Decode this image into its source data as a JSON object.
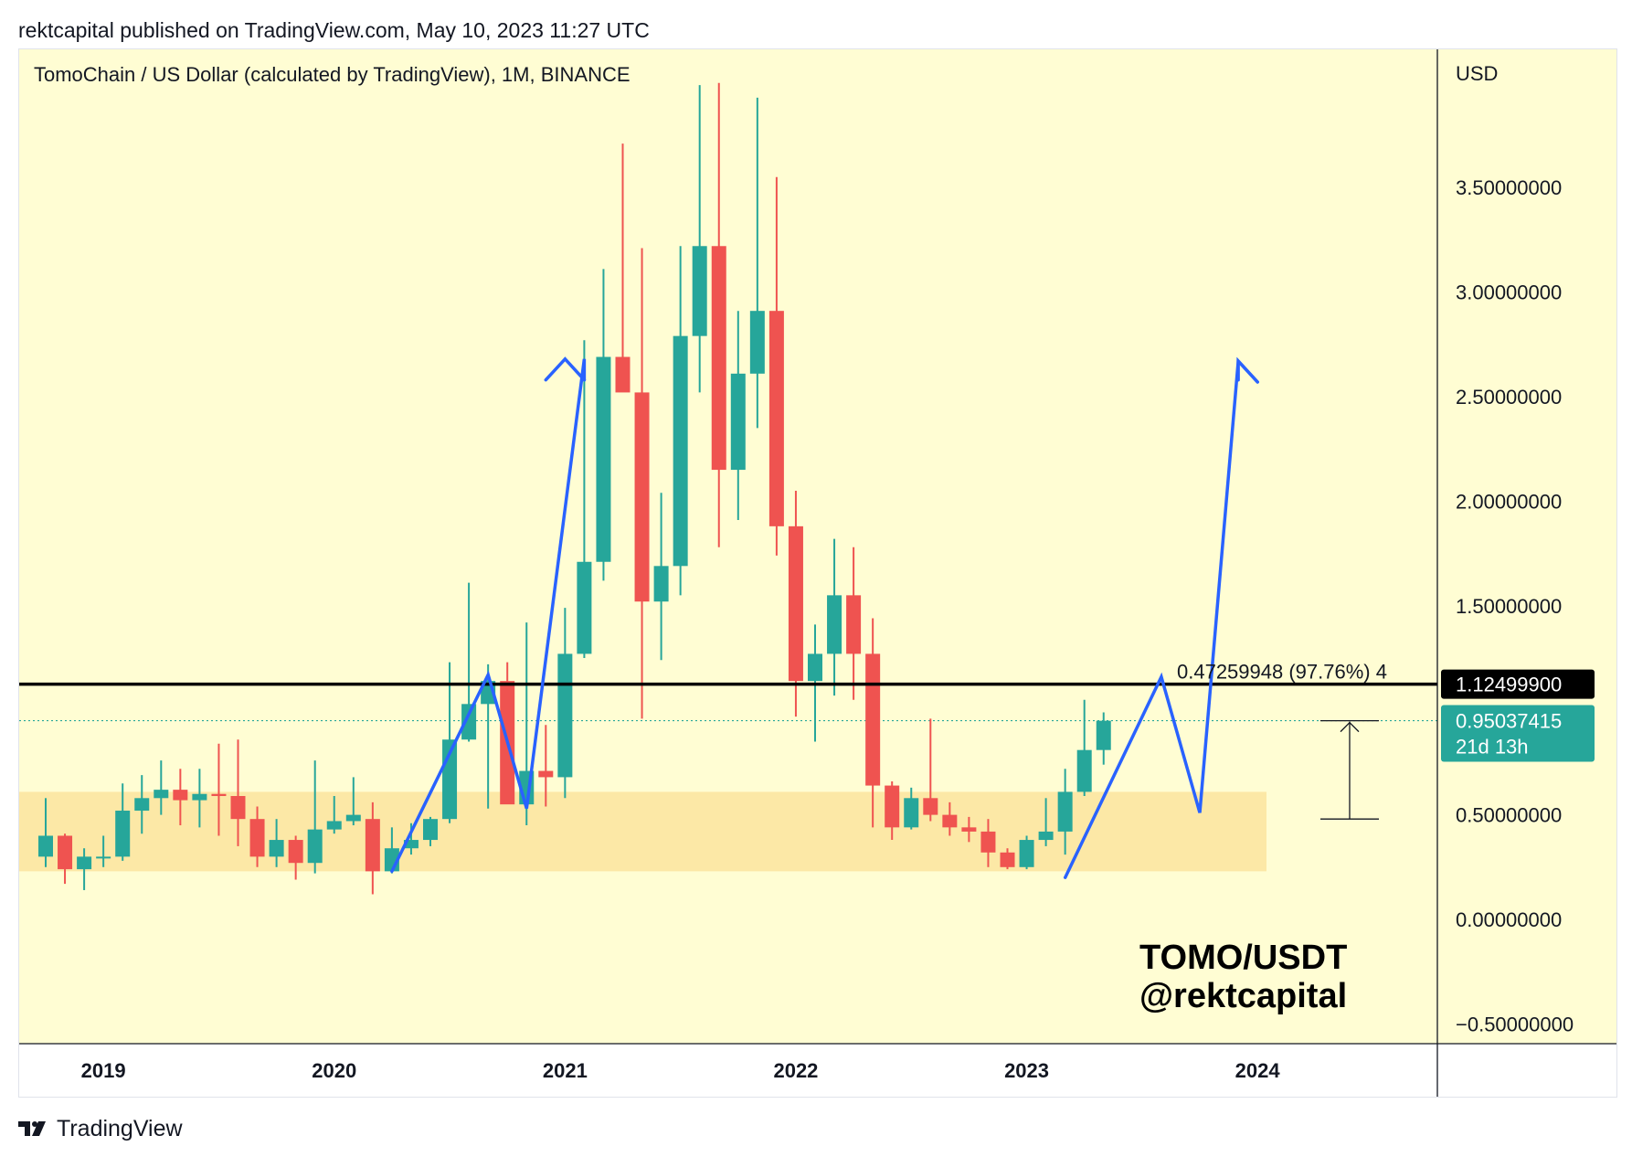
{
  "header": {
    "published_text": "rektcapital published on TradingView.com, May 10, 2023 11:27 UTC"
  },
  "footer": {
    "brand": "TradingView",
    "logo_icon": "tradingview-logo-icon"
  },
  "chart_data": {
    "type": "candlestick",
    "title": "TomoChain / US Dollar (calculated by TradingView), 1M, BINANCE",
    "currency_label": "USD",
    "watermark": [
      "TOMO/USDT",
      "@rektcapital"
    ],
    "x_tick_labels": [
      "2019",
      "2020",
      "2021",
      "2022",
      "2023",
      "2024"
    ],
    "y_tick_labels": [
      "3.50000000",
      "3.00000000",
      "2.50000000",
      "2.00000000",
      "1.50000000",
      "0.50000000",
      "0.00000000",
      "−0.50000000"
    ],
    "y_ticks": [
      3.5,
      3.0,
      2.5,
      2.0,
      1.5,
      0.5,
      0.0,
      -0.5
    ],
    "ylim": [
      -0.58,
      4.02
    ],
    "grid": false,
    "colors": {
      "background": "#fffdd3",
      "up": "#26a69a",
      "down": "#ef5350",
      "zone": "#fce8a6",
      "projection": "#2962ff",
      "resistance": "#000000"
    },
    "candles": [
      {
        "month": "2018-10",
        "open": 0.3,
        "high": 0.58,
        "low": 0.25,
        "close": 0.4
      },
      {
        "month": "2018-11",
        "open": 0.4,
        "high": 0.41,
        "low": 0.17,
        "close": 0.24
      },
      {
        "month": "2018-12",
        "open": 0.24,
        "high": 0.34,
        "low": 0.14,
        "close": 0.3
      },
      {
        "month": "2019-01",
        "open": 0.3,
        "high": 0.4,
        "low": 0.25,
        "close": 0.3
      },
      {
        "month": "2019-02",
        "open": 0.3,
        "high": 0.65,
        "low": 0.28,
        "close": 0.52
      },
      {
        "month": "2019-03",
        "open": 0.52,
        "high": 0.69,
        "low": 0.41,
        "close": 0.58
      },
      {
        "month": "2019-04",
        "open": 0.58,
        "high": 0.76,
        "low": 0.5,
        "close": 0.62
      },
      {
        "month": "2019-05",
        "open": 0.62,
        "high": 0.72,
        "low": 0.45,
        "close": 0.57
      },
      {
        "month": "2019-06",
        "open": 0.57,
        "high": 0.72,
        "low": 0.44,
        "close": 0.6
      },
      {
        "month": "2019-07",
        "open": 0.6,
        "high": 0.84,
        "low": 0.4,
        "close": 0.59
      },
      {
        "month": "2019-08",
        "open": 0.59,
        "high": 0.86,
        "low": 0.35,
        "close": 0.48
      },
      {
        "month": "2019-09",
        "open": 0.48,
        "high": 0.54,
        "low": 0.25,
        "close": 0.3
      },
      {
        "month": "2019-10",
        "open": 0.3,
        "high": 0.48,
        "low": 0.25,
        "close": 0.38
      },
      {
        "month": "2019-11",
        "open": 0.38,
        "high": 0.4,
        "low": 0.19,
        "close": 0.27
      },
      {
        "month": "2019-12",
        "open": 0.27,
        "high": 0.76,
        "low": 0.22,
        "close": 0.43
      },
      {
        "month": "2020-01",
        "open": 0.43,
        "high": 0.59,
        "low": 0.41,
        "close": 0.47
      },
      {
        "month": "2020-02",
        "open": 0.47,
        "high": 0.68,
        "low": 0.45,
        "close": 0.5
      },
      {
        "month": "2020-03",
        "open": 0.48,
        "high": 0.56,
        "low": 0.12,
        "close": 0.23
      },
      {
        "month": "2020-04",
        "open": 0.23,
        "high": 0.44,
        "low": 0.22,
        "close": 0.34
      },
      {
        "month": "2020-05",
        "open": 0.34,
        "high": 0.46,
        "low": 0.31,
        "close": 0.38
      },
      {
        "month": "2020-06",
        "open": 0.38,
        "high": 0.49,
        "low": 0.35,
        "close": 0.48
      },
      {
        "month": "2020-07",
        "open": 0.48,
        "high": 1.23,
        "low": 0.46,
        "close": 0.86
      },
      {
        "month": "2020-08",
        "open": 0.86,
        "high": 1.61,
        "low": 0.85,
        "close": 1.03
      },
      {
        "month": "2020-09",
        "open": 1.03,
        "high": 1.22,
        "low": 0.53,
        "close": 1.14
      },
      {
        "month": "2020-10",
        "open": 1.14,
        "high": 1.23,
        "low": 0.56,
        "close": 0.55
      },
      {
        "month": "2020-11",
        "open": 0.55,
        "high": 1.42,
        "low": 0.45,
        "close": 0.71
      },
      {
        "month": "2020-12",
        "open": 0.71,
        "high": 0.93,
        "low": 0.54,
        "close": 0.68
      },
      {
        "month": "2021-01",
        "open": 0.68,
        "high": 1.49,
        "low": 0.58,
        "close": 1.27
      },
      {
        "month": "2021-02",
        "open": 1.27,
        "high": 2.77,
        "low": 1.25,
        "close": 1.71
      },
      {
        "month": "2021-03",
        "open": 1.71,
        "high": 3.11,
        "low": 1.62,
        "close": 2.69
      },
      {
        "month": "2021-04",
        "open": 2.69,
        "high": 3.71,
        "low": 2.55,
        "close": 2.52
      },
      {
        "month": "2021-05",
        "open": 2.52,
        "high": 3.21,
        "low": 0.96,
        "close": 1.52
      },
      {
        "month": "2021-06",
        "open": 1.52,
        "high": 2.04,
        "low": 1.24,
        "close": 1.69
      },
      {
        "month": "2021-07",
        "open": 1.69,
        "high": 3.22,
        "low": 1.55,
        "close": 2.79
      },
      {
        "month": "2021-08",
        "open": 2.79,
        "high": 3.99,
        "low": 2.52,
        "close": 3.22
      },
      {
        "month": "2021-09",
        "open": 3.22,
        "high": 4.0,
        "low": 1.78,
        "close": 2.15
      },
      {
        "month": "2021-10",
        "open": 2.15,
        "high": 2.91,
        "low": 1.91,
        "close": 2.61
      },
      {
        "month": "2021-11",
        "open": 2.61,
        "high": 3.93,
        "low": 2.35,
        "close": 2.91
      },
      {
        "month": "2021-12",
        "open": 2.91,
        "high": 3.55,
        "low": 1.74,
        "close": 1.88
      },
      {
        "month": "2022-01",
        "open": 1.88,
        "high": 2.05,
        "low": 0.97,
        "close": 1.14
      },
      {
        "month": "2022-02",
        "open": 1.14,
        "high": 1.41,
        "low": 0.85,
        "close": 1.27
      },
      {
        "month": "2022-03",
        "open": 1.27,
        "high": 1.82,
        "low": 1.07,
        "close": 1.55
      },
      {
        "month": "2022-04",
        "open": 1.55,
        "high": 1.78,
        "low": 1.05,
        "close": 1.27
      },
      {
        "month": "2022-05",
        "open": 1.27,
        "high": 1.44,
        "low": 0.44,
        "close": 0.64
      },
      {
        "month": "2022-06",
        "open": 0.64,
        "high": 0.66,
        "low": 0.38,
        "close": 0.44
      },
      {
        "month": "2022-07",
        "open": 0.44,
        "high": 0.63,
        "low": 0.43,
        "close": 0.58
      },
      {
        "month": "2022-08",
        "open": 0.58,
        "high": 0.96,
        "low": 0.47,
        "close": 0.5
      },
      {
        "month": "2022-09",
        "open": 0.5,
        "high": 0.56,
        "low": 0.4,
        "close": 0.44
      },
      {
        "month": "2022-10",
        "open": 0.44,
        "high": 0.49,
        "low": 0.37,
        "close": 0.42
      },
      {
        "month": "2022-11",
        "open": 0.42,
        "high": 0.48,
        "low": 0.25,
        "close": 0.32
      },
      {
        "month": "2022-12",
        "open": 0.32,
        "high": 0.34,
        "low": 0.24,
        "close": 0.25
      },
      {
        "month": "2023-01",
        "open": 0.25,
        "high": 0.4,
        "low": 0.24,
        "close": 0.38
      },
      {
        "month": "2023-02",
        "open": 0.38,
        "high": 0.58,
        "low": 0.35,
        "close": 0.42
      },
      {
        "month": "2023-03",
        "open": 0.42,
        "high": 0.72,
        "low": 0.31,
        "close": 0.61
      },
      {
        "month": "2023-04",
        "open": 0.61,
        "high": 1.05,
        "low": 0.59,
        "close": 0.81
      },
      {
        "month": "2023-05",
        "open": 0.81,
        "high": 0.99,
        "low": 0.74,
        "close": 0.95
      }
    ],
    "resistance_level": 1.124999,
    "resistance_label": "1.12499900",
    "current_price": 0.950374,
    "current_price_label": "0.95037415",
    "countdown_label": "21d 13h",
    "measure_label": "0.47259948 (97.76%) 4",
    "support_zone": {
      "from": 0.23,
      "to": 0.61
    },
    "projection_paths": [
      [
        [
          "2020-04",
          0.23
        ],
        [
          "2020-09",
          1.17
        ],
        [
          "2020-11",
          0.53
        ],
        [
          "2021-02",
          2.68
        ],
        [
          "2021-02",
          2.58
        ]
      ],
      [
        [
          "2023-03",
          0.2
        ],
        [
          "2023-08",
          1.16
        ],
        [
          "2023-10",
          0.51
        ],
        [
          "2023-12",
          2.67
        ],
        [
          "2024-01",
          2.57
        ]
      ]
    ],
    "projection_arrowheads": [
      [
        [
          "2020-12",
          2.58
        ],
        [
          "2021-01",
          2.68
        ],
        [
          "2021-02",
          2.58
        ]
      ],
      [
        [
          "2023-12",
          2.58
        ],
        [
          "2023-12",
          2.67
        ],
        [
          "2024-01",
          2.57
        ]
      ]
    ],
    "measure_range": {
      "from": 0.48,
      "to": 0.95
    }
  }
}
